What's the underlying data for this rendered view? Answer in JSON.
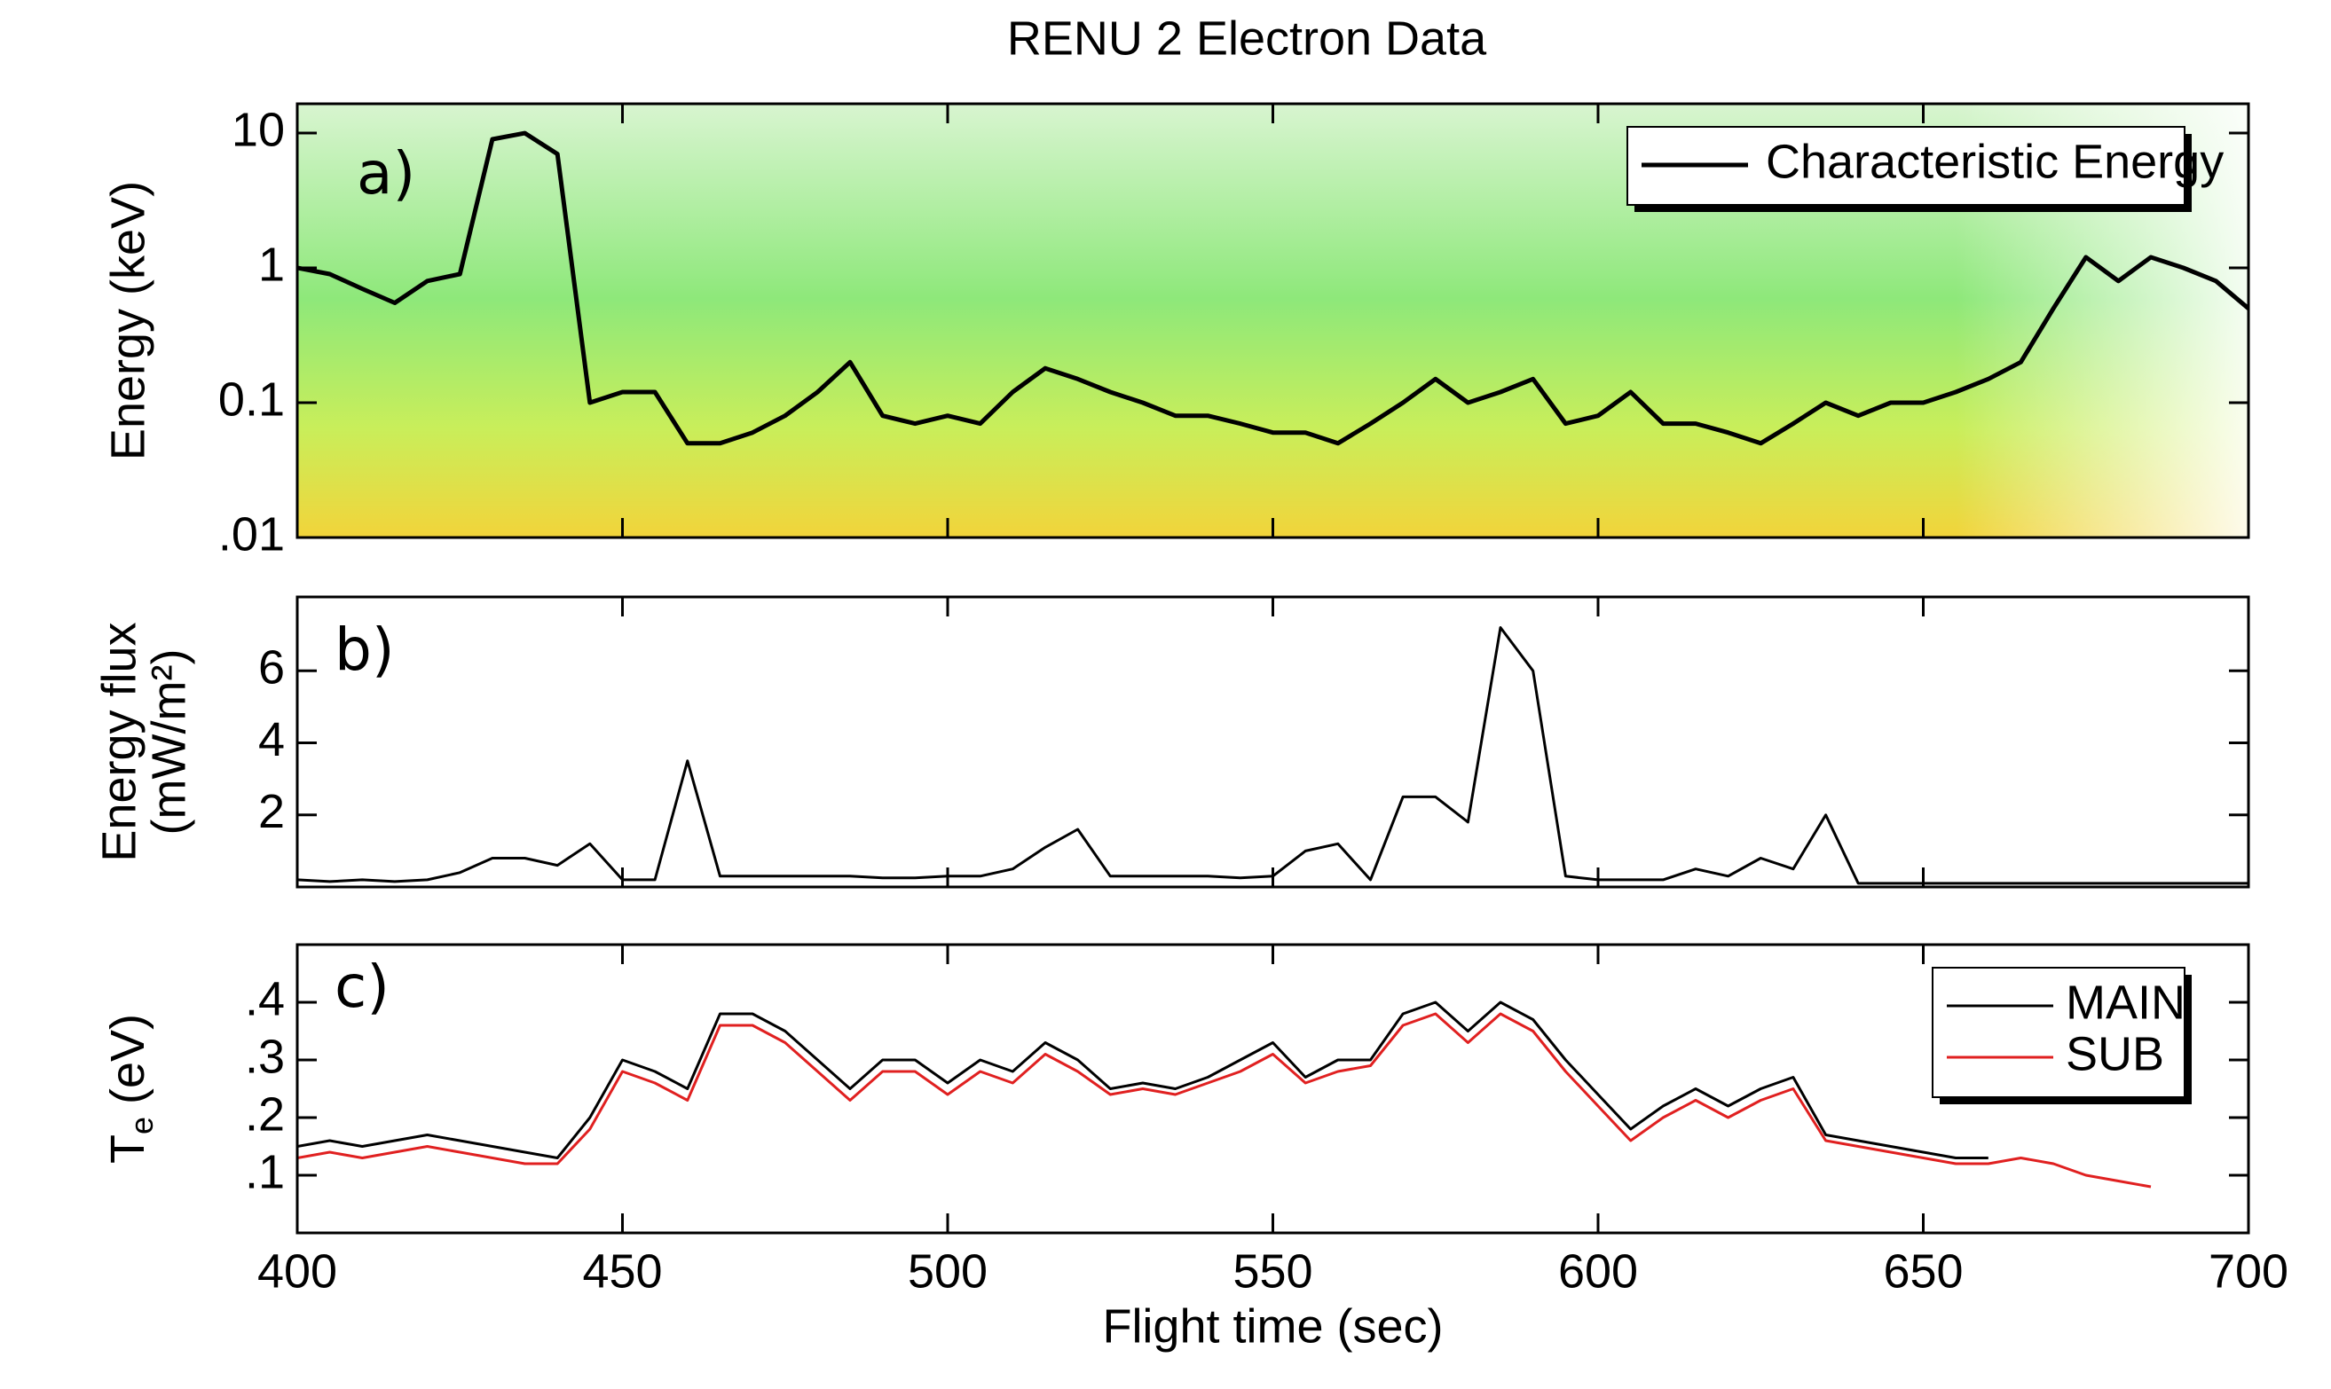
{
  "chart_data": [
    {
      "type": "line",
      "title": "RENU 2 Electron Data",
      "annotation": "a)",
      "ylabel": "Energy (keV)",
      "log_y": true,
      "legend": "upper right",
      "xlim": [
        400,
        700
      ],
      "ylim": [
        0.01,
        16.5
      ],
      "yticks": [
        10,
        1,
        0.1,
        {
          "value": 0.01,
          "label": ".01"
        }
      ],
      "x": [
        400,
        405,
        410,
        415,
        420,
        425,
        430,
        435,
        440,
        445,
        450,
        455,
        460,
        465,
        470,
        475,
        480,
        485,
        490,
        495,
        500,
        505,
        510,
        515,
        520,
        525,
        530,
        535,
        540,
        545,
        550,
        555,
        560,
        565,
        570,
        575,
        580,
        585,
        590,
        595,
        600,
        605,
        610,
        615,
        620,
        625,
        630,
        635,
        640,
        645,
        650,
        655,
        660,
        665,
        670,
        675,
        680,
        685,
        690,
        695,
        700
      ],
      "series": [
        {
          "name": "Characteristic Energy",
          "color": "#000000",
          "values": [
            1.0,
            0.9,
            0.7,
            0.55,
            0.8,
            0.9,
            9,
            10,
            7,
            0.1,
            0.12,
            0.12,
            0.05,
            0.05,
            0.06,
            0.08,
            0.12,
            0.2,
            0.08,
            0.07,
            0.08,
            0.07,
            0.12,
            0.18,
            0.15,
            0.12,
            0.1,
            0.08,
            0.08,
            0.07,
            0.06,
            0.06,
            0.05,
            0.07,
            0.1,
            0.15,
            0.1,
            0.12,
            0.15,
            0.07,
            0.08,
            0.12,
            0.07,
            0.07,
            0.06,
            0.05,
            0.07,
            0.1,
            0.08,
            0.1,
            0.1,
            0.12,
            0.15,
            0.2,
            0.5,
            1.2,
            0.8,
            1.2,
            1.0,
            0.8,
            0.5
          ]
        }
      ]
    },
    {
      "type": "line",
      "annotation": "b)",
      "ylabel": [
        "Energy flux",
        "(mW/m²)"
      ],
      "xlim": [
        400,
        700
      ],
      "ylim": [
        0,
        8.05
      ],
      "yticks": [
        2,
        4,
        6
      ],
      "x": [
        400,
        405,
        410,
        415,
        420,
        425,
        430,
        435,
        440,
        445,
        450,
        455,
        460,
        465,
        470,
        475,
        480,
        485,
        490,
        495,
        500,
        505,
        510,
        515,
        520,
        525,
        530,
        535,
        540,
        545,
        550,
        555,
        560,
        565,
        570,
        575,
        580,
        585,
        590,
        595,
        600,
        605,
        610,
        615,
        620,
        625,
        630,
        635,
        640,
        645,
        650,
        655,
        660,
        665,
        670,
        675,
        680,
        685,
        690,
        695,
        700
      ],
      "series": [
        {
          "name": "Energy flux",
          "color": "#000000",
          "values": [
            0.2,
            0.15,
            0.2,
            0.15,
            0.2,
            0.4,
            0.8,
            0.8,
            0.6,
            1.2,
            0.2,
            0.2,
            3.5,
            0.3,
            0.3,
            0.3,
            0.3,
            0.3,
            0.25,
            0.25,
            0.3,
            0.3,
            0.5,
            1.1,
            1.6,
            0.3,
            0.3,
            0.3,
            0.3,
            0.25,
            0.3,
            1,
            1.2,
            0.2,
            2.5,
            2.5,
            1.8,
            7.2,
            6,
            0.3,
            0.2,
            0.2,
            0.2,
            0.5,
            0.3,
            0.8,
            0.5,
            2,
            0.1,
            0.1,
            0.1,
            0.1,
            0.1,
            0.1,
            0.1,
            0.1,
            0.1,
            0.1,
            0.1,
            0.1,
            0.1
          ]
        }
      ]
    },
    {
      "type": "line",
      "annotation": "c)",
      "ylabel": {
        "main": "T",
        "sub": "e",
        "unit": "(eV)"
      },
      "xlabel": "Flight time (sec)",
      "legend": "upper right",
      "xlim": [
        400,
        700
      ],
      "xticks": [
        400,
        450,
        500,
        550,
        600,
        650,
        700
      ],
      "ylim": [
        0,
        0.5
      ],
      "yticks": [
        {
          "value": 0.1,
          "label": ".1"
        },
        {
          "value": 0.2,
          "label": ".2"
        },
        {
          "value": 0.3,
          "label": ".3"
        },
        {
          "value": 0.4,
          "label": ".4"
        }
      ],
      "x": [
        400,
        405,
        410,
        415,
        420,
        425,
        430,
        435,
        440,
        445,
        450,
        455,
        460,
        465,
        470,
        475,
        480,
        485,
        490,
        495,
        500,
        505,
        510,
        515,
        520,
        525,
        530,
        535,
        540,
        545,
        550,
        555,
        560,
        565,
        570,
        575,
        580,
        585,
        590,
        595,
        600,
        605,
        610,
        615,
        620,
        625,
        630,
        635,
        640,
        645,
        650,
        655,
        660,
        665,
        670,
        675,
        680,
        685,
        690,
        695,
        700
      ],
      "series": [
        {
          "name": "MAIN",
          "color": "#000000",
          "values": [
            0.15,
            0.16,
            0.15,
            0.16,
            0.17,
            0.16,
            0.15,
            0.14,
            0.13,
            0.2,
            0.3,
            0.28,
            0.25,
            0.38,
            0.38,
            0.35,
            0.3,
            0.25,
            0.3,
            0.3,
            0.26,
            0.3,
            0.28,
            0.33,
            0.3,
            0.25,
            0.26,
            0.25,
            0.27,
            0.3,
            0.33,
            0.27,
            0.3,
            0.3,
            0.38,
            0.4,
            0.35,
            0.4,
            0.37,
            0.3,
            0.24,
            0.18,
            0.22,
            0.25,
            0.22,
            0.25,
            0.27,
            0.17,
            0.16,
            0.15,
            0.14,
            0.13,
            0.13,
            null,
            null,
            null,
            null,
            null,
            null,
            null,
            null
          ]
        },
        {
          "name": "SUB",
          "color": "#e02020",
          "values": [
            0.13,
            0.14,
            0.13,
            0.14,
            0.15,
            0.14,
            0.13,
            0.12,
            0.12,
            0.18,
            0.28,
            0.26,
            0.23,
            0.36,
            0.36,
            0.33,
            0.28,
            0.23,
            0.28,
            0.28,
            0.24,
            0.28,
            0.26,
            0.31,
            0.28,
            0.24,
            0.25,
            0.24,
            0.26,
            0.28,
            0.31,
            0.26,
            0.28,
            0.29,
            0.36,
            0.38,
            0.33,
            0.38,
            0.35,
            0.28,
            0.22,
            0.16,
            0.2,
            0.23,
            0.2,
            0.23,
            0.25,
            0.16,
            0.15,
            0.14,
            0.13,
            0.12,
            0.12,
            0.13,
            0.12,
            0.1,
            0.09,
            0.08,
            null,
            null,
            null
          ]
        }
      ]
    }
  ]
}
